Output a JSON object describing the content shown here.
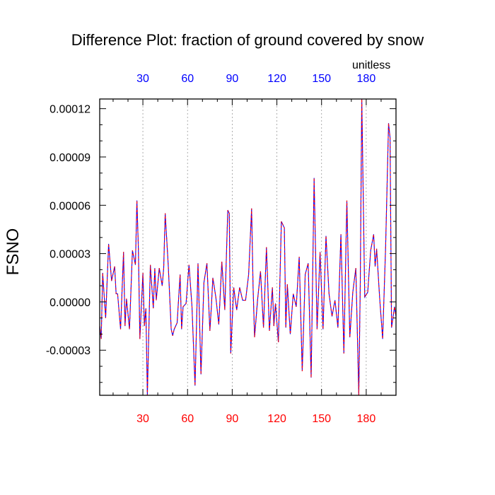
{
  "chart_data": {
    "type": "line",
    "title": "Difference Plot: fraction of ground covered by snow",
    "units": "unitless",
    "ylabel": "FSNO",
    "xlabel": "",
    "xlim": [
      1,
      200
    ],
    "ylim": [
      -5.8e-05,
      0.000126
    ],
    "x_ticks": [
      30,
      60,
      90,
      120,
      150,
      180
    ],
    "x_tick_labels": [
      "30",
      "60",
      "90",
      "120",
      "150",
      "180"
    ],
    "top_axis_color": "#0000ff",
    "bottom_axis_color": "#ff0000",
    "y_ticks": [
      -3e-05,
      0.0,
      3e-05,
      6e-05,
      9e-05,
      0.00012
    ],
    "y_tick_labels": [
      "-0.00003",
      "0.00000",
      "0.00003",
      "0.00006",
      "0.00009",
      "0.00012"
    ],
    "grid": {
      "vertical": true,
      "style": "dotted"
    },
    "series": [
      {
        "line_colors": [
          "#0000ff",
          "#ff0000"
        ],
        "dashed": true,
        "x": [
          1,
          2,
          3,
          5,
          7,
          9,
          11,
          12,
          13,
          15,
          17,
          18,
          19,
          21,
          23,
          25,
          26,
          27,
          28,
          30,
          31,
          32,
          33,
          35,
          37,
          38,
          39,
          41,
          43,
          44,
          45,
          47,
          49,
          50,
          51,
          53,
          55,
          56,
          57,
          59,
          61,
          63,
          65,
          66,
          67,
          69,
          71,
          73,
          75,
          76,
          77,
          79,
          81,
          83,
          85,
          87,
          88,
          89,
          91,
          93,
          95,
          97,
          99,
          101,
          103,
          104,
          105,
          107,
          109,
          111,
          113,
          115,
          117,
          118,
          119,
          121,
          123,
          125,
          126,
          127,
          129,
          131,
          133,
          135,
          137,
          139,
          141,
          143,
          145,
          146,
          147,
          149,
          151,
          153,
          155,
          157,
          159,
          161,
          163,
          165,
          167,
          169,
          171,
          173,
          175,
          176,
          177,
          179,
          181,
          183,
          185,
          186,
          187,
          189,
          191,
          193,
          195,
          196,
          197,
          199,
          200
        ],
        "y": [
          -1.5e-05,
          -2.3e-05,
          1.8e-05,
          -1e-05,
          3.6e-05,
          1.3e-05,
          2.2e-05,
          5e-06,
          5e-06,
          -1.7e-05,
          3.1e-05,
          -1.5e-05,
          2e-06,
          -1.7e-05,
          3.2e-05,
          2.3e-05,
          6.3e-05,
          3.3e-05,
          -2.3e-05,
          1.8e-05,
          -1.5e-05,
          -4e-06,
          -5.8e-05,
          2.3e-05,
          -4e-06,
          2.1e-05,
          1e-06,
          2.1e-05,
          1e-05,
          2.1e-05,
          5.5e-05,
          2.3e-05,
          -1.7e-05,
          -2.1e-05,
          -1.7e-05,
          -1.3e-05,
          1.7e-05,
          -1.7e-05,
          -3e-06,
          -1e-06,
          2.3e-05,
          -3e-06,
          -5.2e-05,
          -1.5e-05,
          2.4e-05,
          -4.5e-05,
          1.2e-05,
          2.4e-05,
          -1.8e-05,
          -3e-06,
          1.5e-05,
          3e-06,
          -1.4e-05,
          2.5e-05,
          -5e-06,
          5.7e-05,
          5.5e-05,
          -3.2e-05,
          9e-06,
          -5e-06,
          9e-06,
          1e-06,
          1e-06,
          1.7e-05,
          5.8e-05,
          9e-06,
          -2.2e-05,
          1e-06,
          1.9e-05,
          -1.6e-05,
          3.4e-05,
          -1.8e-05,
          9e-06,
          -1.5e-05,
          -1e-06,
          -2.5e-05,
          5e-05,
          4.6e-05,
          -1.6e-05,
          1.1e-05,
          -2e-05,
          5e-06,
          -3e-06,
          2.8e-05,
          -4.3e-05,
          1.7e-05,
          2.4e-05,
          -4.7e-05,
          7.7e-05,
          3e-05,
          -1.7e-05,
          3.1e-05,
          -1.7e-05,
          4.1e-05,
          5e-06,
          -9e-06,
          1e-06,
          -1.6e-05,
          4.2e-05,
          -3.2e-05,
          6.3e-05,
          -2.2e-05,
          6e-06,
          2.1e-05,
          -5.8e-05,
          1.2e-05,
          0.000126,
          3e-06,
          6e-06,
          3.2e-05,
          4.2e-05,
          2.2e-05,
          3.3e-05,
          3e-06,
          -2.3e-05,
          3.4e-05,
          0.000111,
          0.000102,
          -1.6e-05,
          -3e-06,
          -9e-06
        ]
      }
    ]
  }
}
